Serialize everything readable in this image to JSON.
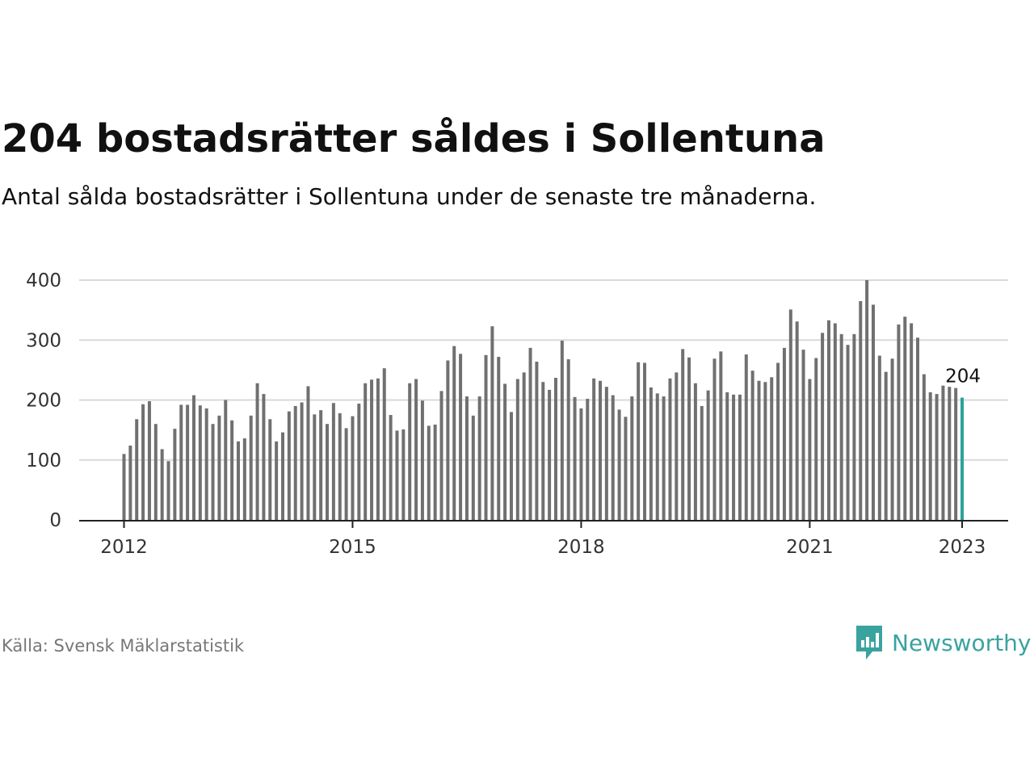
{
  "header": {
    "title": "204 bostadsrätter såldes i Sollentuna",
    "subtitle": "Antal sålda bostadsrätter i Sollentuna under de senaste tre månaderna."
  },
  "footer": {
    "source": "Källa: Svensk Mäklarstatistik",
    "brand": "Newsworthy"
  },
  "colors": {
    "bar": "#707070",
    "highlight": "#2aa39b",
    "grid": "#d9d9d9",
    "axis": "#222222",
    "brand": "#3aa3a0"
  },
  "icons": {
    "brand_logo": "bar-chart-speech-bubble-icon"
  },
  "chart_data": {
    "type": "bar",
    "x_start": "2012-01",
    "interval": "month",
    "title": "",
    "xlabel": "",
    "ylabel": "",
    "ylim": [
      0,
      400
    ],
    "yticks": [
      0,
      100,
      200,
      300,
      400
    ],
    "xticks": [
      "2012",
      "2015",
      "2018",
      "2021",
      "2023"
    ],
    "grid": true,
    "values": [
      110,
      124,
      168,
      193,
      198,
      160,
      118,
      98,
      152,
      192,
      192,
      208,
      191,
      186,
      160,
      174,
      200,
      166,
      131,
      136,
      174,
      228,
      210,
      168,
      131,
      146,
      181,
      190,
      196,
      223,
      176,
      183,
      160,
      195,
      178,
      153,
      173,
      194,
      228,
      234,
      236,
      253,
      175,
      149,
      151,
      228,
      235,
      199,
      157,
      159,
      215,
      266,
      290,
      277,
      206,
      174,
      206,
      275,
      323,
      272,
      227,
      180,
      235,
      246,
      287,
      264,
      230,
      217,
      237,
      299,
      268,
      205,
      186,
      202,
      236,
      232,
      222,
      208,
      184,
      172,
      206,
      263,
      262,
      221,
      211,
      206,
      236,
      246,
      285,
      271,
      228,
      190,
      216,
      269,
      281,
      213,
      209,
      209,
      276,
      249,
      232,
      230,
      238,
      262,
      287,
      351,
      331,
      284,
      235,
      270,
      312,
      333,
      328,
      310,
      292,
      310,
      365,
      400,
      359,
      274,
      247,
      269,
      326,
      339,
      328,
      304,
      243,
      213,
      210,
      224,
      222,
      220,
      204
    ],
    "highlight": {
      "label": "204",
      "value": 204
    }
  }
}
